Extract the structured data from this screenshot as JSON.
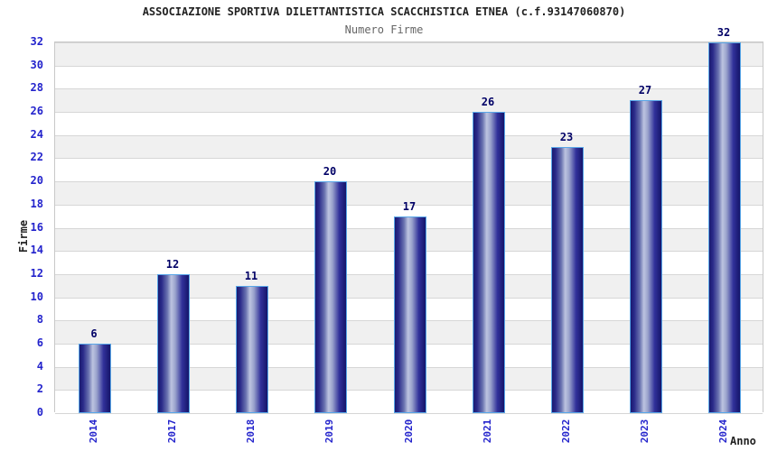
{
  "chart_data": {
    "type": "bar",
    "title": "ASSOCIAZIONE SPORTIVA DILETTANTISTICA SCACCHISTICA ETNEA (c.f.93147060870)",
    "subtitle": "Numero Firme",
    "xlabel": "Anno",
    "ylabel": "Firme",
    "categories": [
      "2014",
      "2017",
      "2018",
      "2019",
      "2020",
      "2021",
      "2022",
      "2023",
      "2024"
    ],
    "values": [
      6,
      12,
      11,
      20,
      17,
      26,
      23,
      27,
      32
    ],
    "ylim": [
      0,
      32
    ],
    "ytick_step": 2,
    "yticks": [
      0,
      2,
      4,
      6,
      8,
      10,
      12,
      14,
      16,
      18,
      20,
      22,
      24,
      26,
      28,
      30,
      32
    ],
    "grid": true,
    "legend": "none",
    "colors": {
      "bar_dark": "#1a1a70",
      "bar_light": "#bdc4e0",
      "bar_border": "#58a6e8",
      "value_label": "#000066",
      "tick_label": "#2323cc",
      "band_stripe": "#f0f0f0",
      "band_alt": "#ffffff",
      "gridline": "#d6d6d6",
      "title_text": "#222222",
      "subtitle_text": "#666666"
    }
  }
}
